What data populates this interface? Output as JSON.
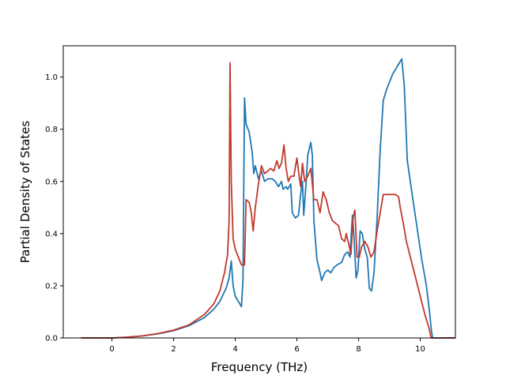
{
  "chart_data": {
    "type": "line",
    "title": "",
    "xlabel": "Frequency (THz)",
    "ylabel": "Partial Density of States",
    "xlim": [
      -1.58,
      11.14
    ],
    "ylim": [
      0.0,
      1.12
    ],
    "xticks": [
      0,
      2,
      4,
      6,
      8,
      10
    ],
    "xtick_labels": [
      "0",
      "2",
      "4",
      "6",
      "8",
      "10"
    ],
    "yticks": [
      0.0,
      0.2,
      0.4,
      0.6,
      0.8,
      1.0
    ],
    "ytick_labels": [
      "0.0",
      "0.2",
      "0.4",
      "0.6",
      "0.8",
      "1.0"
    ],
    "grid": false,
    "legend": "none",
    "series": [
      {
        "color": "#1f77b4",
        "points": [
          [
            -1.0,
            0.0
          ],
          [
            -0.5,
            0.0
          ],
          [
            0.0,
            0.0
          ],
          [
            0.5,
            0.003
          ],
          [
            1.0,
            0.008
          ],
          [
            1.5,
            0.016
          ],
          [
            2.0,
            0.028
          ],
          [
            2.5,
            0.047
          ],
          [
            3.0,
            0.078
          ],
          [
            3.3,
            0.11
          ],
          [
            3.5,
            0.14
          ],
          [
            3.7,
            0.19
          ],
          [
            3.8,
            0.23
          ],
          [
            3.87,
            0.295
          ],
          [
            3.93,
            0.2
          ],
          [
            4.0,
            0.16
          ],
          [
            4.1,
            0.14
          ],
          [
            4.2,
            0.12
          ],
          [
            4.25,
            0.22
          ],
          [
            4.3,
            0.92
          ],
          [
            4.35,
            0.82
          ],
          [
            4.45,
            0.79
          ],
          [
            4.55,
            0.71
          ],
          [
            4.6,
            0.63
          ],
          [
            4.65,
            0.66
          ],
          [
            4.75,
            0.61
          ],
          [
            4.85,
            0.64
          ],
          [
            4.95,
            0.6
          ],
          [
            5.05,
            0.61
          ],
          [
            5.2,
            0.61
          ],
          [
            5.3,
            0.6
          ],
          [
            5.4,
            0.58
          ],
          [
            5.5,
            0.6
          ],
          [
            5.55,
            0.57
          ],
          [
            5.65,
            0.58
          ],
          [
            5.7,
            0.57
          ],
          [
            5.8,
            0.59
          ],
          [
            5.85,
            0.48
          ],
          [
            5.95,
            0.46
          ],
          [
            6.05,
            0.47
          ],
          [
            6.12,
            0.55
          ],
          [
            6.18,
            0.6
          ],
          [
            6.22,
            0.47
          ],
          [
            6.3,
            0.6
          ],
          [
            6.35,
            0.7
          ],
          [
            6.45,
            0.75
          ],
          [
            6.5,
            0.7
          ],
          [
            6.55,
            0.45
          ],
          [
            6.65,
            0.3
          ],
          [
            6.75,
            0.25
          ],
          [
            6.8,
            0.22
          ],
          [
            6.9,
            0.25
          ],
          [
            7.0,
            0.26
          ],
          [
            7.1,
            0.25
          ],
          [
            7.2,
            0.27
          ],
          [
            7.3,
            0.28
          ],
          [
            7.45,
            0.29
          ],
          [
            7.55,
            0.32
          ],
          [
            7.65,
            0.33
          ],
          [
            7.72,
            0.31
          ],
          [
            7.8,
            0.47
          ],
          [
            7.85,
            0.39
          ],
          [
            7.92,
            0.23
          ],
          [
            7.98,
            0.26
          ],
          [
            8.05,
            0.41
          ],
          [
            8.12,
            0.4
          ],
          [
            8.2,
            0.34
          ],
          [
            8.28,
            0.31
          ],
          [
            8.35,
            0.19
          ],
          [
            8.42,
            0.18
          ],
          [
            8.5,
            0.25
          ],
          [
            8.6,
            0.46
          ],
          [
            8.7,
            0.72
          ],
          [
            8.8,
            0.91
          ],
          [
            8.9,
            0.95
          ],
          [
            9.0,
            0.98
          ],
          [
            9.1,
            1.01
          ],
          [
            9.2,
            1.03
          ],
          [
            9.3,
            1.05
          ],
          [
            9.4,
            1.07
          ],
          [
            9.48,
            0.97
          ],
          [
            9.58,
            0.68
          ],
          [
            9.75,
            0.54
          ],
          [
            9.9,
            0.42
          ],
          [
            10.05,
            0.3
          ],
          [
            10.2,
            0.2
          ],
          [
            10.3,
            0.1
          ],
          [
            10.36,
            0.03
          ],
          [
            10.4,
            0.0
          ],
          [
            10.6,
            0.0
          ],
          [
            11.0,
            0.0
          ],
          [
            11.2,
            0.0
          ],
          [
            11.25,
            0.0
          ]
        ]
      },
      {
        "color": "#c0392b",
        "points": [
          [
            -1.0,
            0.0
          ],
          [
            -0.5,
            0.0
          ],
          [
            0.0,
            0.0
          ],
          [
            0.5,
            0.003
          ],
          [
            1.0,
            0.008
          ],
          [
            1.5,
            0.017
          ],
          [
            2.0,
            0.03
          ],
          [
            2.5,
            0.05
          ],
          [
            3.0,
            0.09
          ],
          [
            3.3,
            0.13
          ],
          [
            3.5,
            0.18
          ],
          [
            3.65,
            0.25
          ],
          [
            3.75,
            0.32
          ],
          [
            3.8,
            0.45
          ],
          [
            3.83,
            1.055
          ],
          [
            3.87,
            0.6
          ],
          [
            3.93,
            0.38
          ],
          [
            4.0,
            0.34
          ],
          [
            4.1,
            0.31
          ],
          [
            4.2,
            0.28
          ],
          [
            4.3,
            0.28
          ],
          [
            4.35,
            0.53
          ],
          [
            4.45,
            0.52
          ],
          [
            4.52,
            0.48
          ],
          [
            4.58,
            0.41
          ],
          [
            4.65,
            0.5
          ],
          [
            4.75,
            0.59
          ],
          [
            4.85,
            0.66
          ],
          [
            4.95,
            0.63
          ],
          [
            5.05,
            0.64
          ],
          [
            5.15,
            0.65
          ],
          [
            5.25,
            0.64
          ],
          [
            5.35,
            0.68
          ],
          [
            5.42,
            0.65
          ],
          [
            5.5,
            0.67
          ],
          [
            5.58,
            0.74
          ],
          [
            5.65,
            0.65
          ],
          [
            5.72,
            0.6
          ],
          [
            5.8,
            0.62
          ],
          [
            5.9,
            0.62
          ],
          [
            6.0,
            0.69
          ],
          [
            6.05,
            0.64
          ],
          [
            6.12,
            0.58
          ],
          [
            6.18,
            0.67
          ],
          [
            6.25,
            0.6
          ],
          [
            6.35,
            0.62
          ],
          [
            6.45,
            0.65
          ],
          [
            6.55,
            0.53
          ],
          [
            6.65,
            0.53
          ],
          [
            6.75,
            0.48
          ],
          [
            6.85,
            0.56
          ],
          [
            6.95,
            0.53
          ],
          [
            7.05,
            0.48
          ],
          [
            7.15,
            0.45
          ],
          [
            7.25,
            0.44
          ],
          [
            7.35,
            0.43
          ],
          [
            7.45,
            0.38
          ],
          [
            7.55,
            0.37
          ],
          [
            7.6,
            0.4
          ],
          [
            7.7,
            0.35
          ],
          [
            7.75,
            0.32
          ],
          [
            7.82,
            0.46
          ],
          [
            7.88,
            0.49
          ],
          [
            7.95,
            0.31
          ],
          [
            8.02,
            0.31
          ],
          [
            8.1,
            0.35
          ],
          [
            8.2,
            0.37
          ],
          [
            8.3,
            0.35
          ],
          [
            8.4,
            0.31
          ],
          [
            8.5,
            0.33
          ],
          [
            8.6,
            0.41
          ],
          [
            8.7,
            0.48
          ],
          [
            8.8,
            0.55
          ],
          [
            9.0,
            0.55
          ],
          [
            9.2,
            0.55
          ],
          [
            9.3,
            0.54
          ],
          [
            9.35,
            0.5
          ],
          [
            9.45,
            0.44
          ],
          [
            9.55,
            0.37
          ],
          [
            9.7,
            0.3
          ],
          [
            9.85,
            0.23
          ],
          [
            10.0,
            0.16
          ],
          [
            10.15,
            0.09
          ],
          [
            10.28,
            0.04
          ],
          [
            10.35,
            0.0
          ],
          [
            10.6,
            0.0
          ],
          [
            11.0,
            0.0
          ],
          [
            11.2,
            0.0
          ],
          [
            11.25,
            0.0
          ]
        ]
      }
    ]
  }
}
